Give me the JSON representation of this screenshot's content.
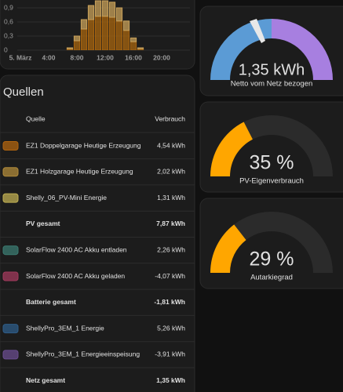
{
  "chart_data": {
    "type": "bar",
    "stacked": true,
    "x": [
      7,
      8,
      9,
      10,
      11,
      12,
      13,
      14,
      15,
      16,
      17
    ],
    "series": [
      {
        "color": "#a8650f",
        "values": [
          0.03,
          0.2,
          0.45,
          0.65,
          0.72,
          0.72,
          0.7,
          0.62,
          0.42,
          0.18,
          0.03
        ]
      },
      {
        "color": "#c9a15a",
        "values": [
          0.02,
          0.1,
          0.2,
          0.3,
          0.33,
          0.33,
          0.32,
          0.28,
          0.2,
          0.08,
          0.02
        ]
      }
    ],
    "xlim": [
      0,
      24
    ],
    "xticks": [
      {
        "value": 0,
        "label": "5. März"
      },
      {
        "value": 4,
        "label": "4:00"
      },
      {
        "value": 8,
        "label": "8:00"
      },
      {
        "value": 12,
        "label": "12:00"
      },
      {
        "value": 16,
        "label": "16:00"
      },
      {
        "value": 20,
        "label": "20:00"
      }
    ],
    "ylim": [
      0,
      1.05
    ],
    "yticks": [
      0,
      {
        "value": 0.3,
        "label": "0,3"
      },
      {
        "value": 0.6,
        "label": "0,6"
      },
      {
        "value": 0.9,
        "label": "0,9"
      }
    ],
    "grid": true
  },
  "sources": {
    "title": "Quellen",
    "header": [
      "Quelle",
      "Verbrauch"
    ],
    "rows": [
      {
        "name": "EZ1 Doppelgarage Heutige Erzeugung",
        "value": "4,54 kWh",
        "color": "#b0640f"
      },
      {
        "name": "EZ1 Holzgarage Heutige Erzeugung",
        "value": "2,02 kWh",
        "color": "#b08a3a"
      },
      {
        "name": "Shelly_06_PV-Mini Energie",
        "value": "1,31 kWh",
        "color": "#bfae52"
      },
      {
        "name": "PV gesamt",
        "value": "7,87 kWh",
        "total": true
      },
      {
        "name": "SolarFlow 2400 AC Akku entladen",
        "value": "2,26 kWh",
        "color": "#3b7a70"
      },
      {
        "name": "SolarFlow 2400 AC Akku geladen",
        "value": "-4,07 kWh",
        "color": "#a13a5c"
      },
      {
        "name": "Batterie gesamt",
        "value": "-1,81 kWh",
        "total": true
      },
      {
        "name": "ShellyPro_3EM_1 Energie",
        "value": "5,26 kWh",
        "color": "#2e5c88"
      },
      {
        "name": "ShellyPro_3EM_1 Energieeinspeisung",
        "value": "-3,91 kWh",
        "color": "#6a4c8e"
      },
      {
        "name": "Netz gesamt",
        "value": "1,35 kWh",
        "total": true
      }
    ]
  },
  "gauges": [
    {
      "value": 1.35,
      "value_label": "1,35 kWh",
      "label": "Netto vom Netz bezogen"
    },
    {
      "value": 35,
      "value_label": "35 %",
      "label": "PV-Eigenverbrauch",
      "range": [
        0,
        100
      ],
      "color": "#ffa600"
    },
    {
      "value": 29,
      "value_label": "29 %",
      "label": "Autarkiegrad",
      "range": [
        0,
        100
      ],
      "color": "#ffa600"
    }
  ]
}
